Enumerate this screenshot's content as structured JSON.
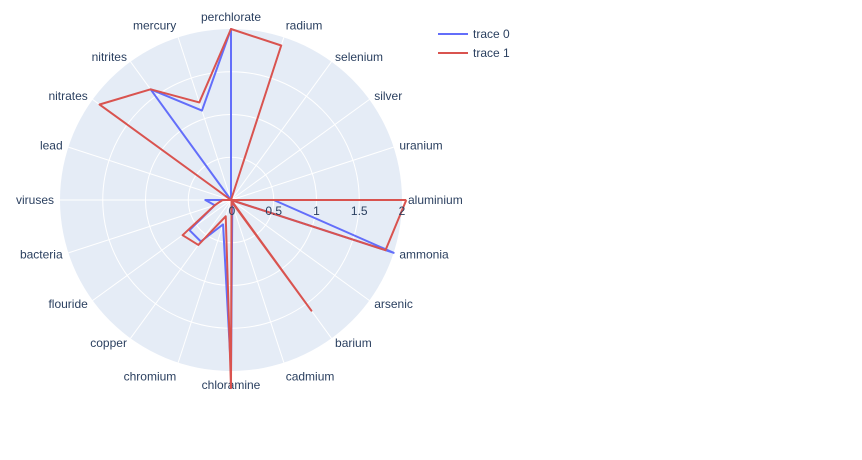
{
  "chart_data": {
    "type": "radar",
    "categories": [
      "aluminium",
      "ammonia",
      "arsenic",
      "barium",
      "cadmium",
      "chloramine",
      "chromium",
      "copper",
      "flouride",
      "bacteria",
      "viruses",
      "lead",
      "nitrates",
      "nitrites",
      "mercury",
      "perchlorate",
      "radium",
      "selenium",
      "silver",
      "uranium"
    ],
    "radial_ticks": [
      "0",
      "0.5",
      "1",
      "1.5",
      "2"
    ],
    "radial_range": [
      0,
      2
    ],
    "legend_position": "top-right",
    "grid": true,
    "series": [
      {
        "name": "trace 0",
        "color": "#636efa",
        "values": [
          0.5,
          2.0,
          0.0,
          0.05,
          0.05,
          2.0,
          0.3,
          0.6,
          0.6,
          0.2,
          0.3,
          0.0,
          0.0,
          1.6,
          1.1,
          2.0,
          0.0,
          0.0,
          0.0,
          0.0
        ]
      },
      {
        "name": "trace 1",
        "color": "#d9534f",
        "values": [
          2.05,
          1.9,
          0.0,
          1.6,
          0.02,
          2.2,
          0.2,
          0.65,
          0.7,
          0.2,
          0.1,
          0.0,
          1.9,
          1.6,
          1.2,
          2.0,
          1.9,
          0.0,
          0.0,
          0.0
        ]
      }
    ]
  }
}
